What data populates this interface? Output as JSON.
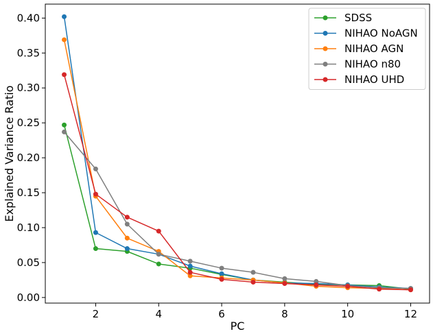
{
  "chart_data": {
    "type": "line",
    "title": "",
    "xlabel": "PC",
    "ylabel": "Explained Variance Ratio",
    "xlim": [
      0.4,
      12.6
    ],
    "ylim": [
      -0.008,
      0.42
    ],
    "xticks": [
      2,
      4,
      6,
      8,
      10,
      12
    ],
    "yticks": [
      0.0,
      0.05,
      0.1,
      0.15,
      0.2,
      0.25,
      0.3,
      0.35,
      0.4
    ],
    "ytick_labels": [
      "0.00",
      "0.05",
      "0.10",
      "0.15",
      "0.20",
      "0.25",
      "0.30",
      "0.35",
      "0.40"
    ],
    "grid": false,
    "legend_position": "top-right",
    "x": [
      1,
      2,
      3,
      4,
      5,
      6,
      7,
      8,
      9,
      10,
      11,
      12
    ],
    "series": [
      {
        "name": "SDSS",
        "color": "#2ca02c",
        "values": [
          0.247,
          0.07,
          0.066,
          0.048,
          0.042,
          0.033,
          0.025,
          0.022,
          0.019,
          0.018,
          0.017,
          0.012
        ]
      },
      {
        "name": "NIHAO NoAGN",
        "color": "#1f77b4",
        "values": [
          0.402,
          0.093,
          0.07,
          0.062,
          0.045,
          0.034,
          0.025,
          0.021,
          0.02,
          0.018,
          0.015,
          0.013
        ]
      },
      {
        "name": "NIHAO AGN",
        "color": "#ff7f0e",
        "values": [
          0.369,
          0.145,
          0.085,
          0.066,
          0.031,
          0.028,
          0.025,
          0.021,
          0.016,
          0.014,
          0.013,
          0.011
        ]
      },
      {
        "name": "NIHAO n80",
        "color": "#7f7f7f",
        "values": [
          0.237,
          0.184,
          0.105,
          0.062,
          0.052,
          0.042,
          0.036,
          0.027,
          0.023,
          0.017,
          0.014,
          0.013
        ]
      },
      {
        "name": "NIHAO UHD",
        "color": "#d62728",
        "values": [
          0.319,
          0.148,
          0.115,
          0.095,
          0.036,
          0.026,
          0.022,
          0.02,
          0.018,
          0.016,
          0.012,
          0.011
        ]
      }
    ]
  }
}
